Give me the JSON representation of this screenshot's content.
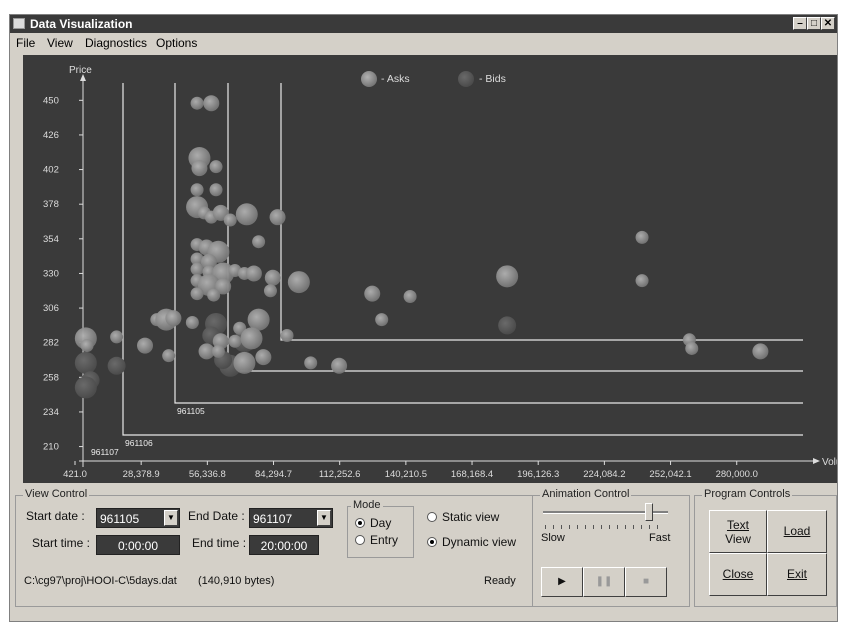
{
  "window": {
    "title": "Data Visualization"
  },
  "menu": {
    "file": "File",
    "view": "View",
    "diagnostics": "Diagnostics",
    "options": "Options"
  },
  "chart_data": {
    "type": "scatter",
    "title": "",
    "xlabel": "Volume",
    "ylabel": "Price",
    "xlim": [
      421.0,
      308000
    ],
    "ylim": [
      200,
      462
    ],
    "x_ticks": [
      "421.0",
      "28,378.9",
      "56,336.8",
      "84,294.7",
      "112,252.6",
      "140,210.5",
      "168,168.4",
      "196,126.3",
      "224,084.2",
      "252,042.1",
      "280,000.0"
    ],
    "y_ticks": [
      "450",
      "426",
      "402",
      "378",
      "354",
      "330",
      "306",
      "282",
      "258",
      "234",
      "210"
    ],
    "legend": [
      "- Asks",
      "- Bids"
    ],
    "legend_placement": "top-center",
    "date_lines": [
      "961107",
      "961106",
      "961105"
    ],
    "series": [
      {
        "name": "- Asks",
        "points": [
          [
            5000,
            285
          ],
          [
            5500,
            280
          ],
          [
            18000,
            286
          ],
          [
            30000,
            280
          ],
          [
            35000,
            298
          ],
          [
            39000,
            298
          ],
          [
            42000,
            299
          ],
          [
            50000,
            296
          ],
          [
            52000,
            448
          ],
          [
            58000,
            448
          ],
          [
            53000,
            410
          ],
          [
            60000,
            404
          ],
          [
            53000,
            403
          ],
          [
            52000,
            388
          ],
          [
            60000,
            388
          ],
          [
            52000,
            376
          ],
          [
            55000,
            372
          ],
          [
            58000,
            369
          ],
          [
            62000,
            372
          ],
          [
            66000,
            367
          ],
          [
            73000,
            371
          ],
          [
            86000,
            369
          ],
          [
            78000,
            352
          ],
          [
            52000,
            350
          ],
          [
            56000,
            348
          ],
          [
            61000,
            345
          ],
          [
            52000,
            340
          ],
          [
            57000,
            338
          ],
          [
            52000,
            333
          ],
          [
            57000,
            331
          ],
          [
            63000,
            330
          ],
          [
            68000,
            332
          ],
          [
            72000,
            330
          ],
          [
            76000,
            330
          ],
          [
            52000,
            325
          ],
          [
            57000,
            322
          ],
          [
            63000,
            321
          ],
          [
            52000,
            316
          ],
          [
            59000,
            315
          ],
          [
            84000,
            327
          ],
          [
            95000,
            324
          ],
          [
            83000,
            318
          ],
          [
            126000,
            316
          ],
          [
            142000,
            314
          ],
          [
            130000,
            298
          ],
          [
            78000,
            298
          ],
          [
            70000,
            292
          ],
          [
            90000,
            287
          ],
          [
            62000,
            283
          ],
          [
            68000,
            283
          ],
          [
            75000,
            285
          ],
          [
            56000,
            276
          ],
          [
            61000,
            276
          ],
          [
            40000,
            273
          ],
          [
            80000,
            272
          ],
          [
            72000,
            268
          ],
          [
            100000,
            268
          ],
          [
            112000,
            266
          ],
          [
            240000,
            355
          ],
          [
            240000,
            325
          ],
          [
            183000,
            328
          ],
          [
            260000,
            284
          ],
          [
            261000,
            278
          ],
          [
            290000,
            276
          ]
        ]
      },
      {
        "name": "- Bids",
        "points": [
          [
            5000,
            268
          ],
          [
            7000,
            256
          ],
          [
            5000,
            251
          ],
          [
            18000,
            266
          ],
          [
            60000,
            295
          ],
          [
            183000,
            294
          ],
          [
            66000,
            266
          ],
          [
            63000,
            270
          ],
          [
            72000,
            283
          ],
          [
            58000,
            287
          ]
        ]
      }
    ]
  },
  "view_control": {
    "title": "View Control",
    "start_date_label": "Start date :",
    "start_date": "961105",
    "end_date_label": "End Date :",
    "end_date": "961107",
    "start_time_label": "Start time :",
    "start_time": "0:00:00",
    "end_time_label": "End time :",
    "end_time": "20:00:00",
    "mode_title": "Mode",
    "mode_day": "Day",
    "mode_entry": "Entry",
    "static_view": "Static view",
    "dynamic_view": "Dynamic view",
    "file_path": "C:\\cg97\\proj\\HOOI-C\\5days.dat",
    "file_size": "(140,910 bytes)",
    "status": "Ready"
  },
  "animation_control": {
    "title": "Animation Control",
    "slow": "Slow",
    "fast": "Fast",
    "speed": 0.85
  },
  "program_controls": {
    "title": "Program Controls",
    "text_view_1": "Text",
    "text_view_2": "View",
    "load": "Load",
    "close": "Close",
    "exit": "Exit"
  },
  "colors": {
    "plot_bg": "#3a3a3a",
    "bubble": "#8e8e8e",
    "line": "#e8e8e8"
  }
}
